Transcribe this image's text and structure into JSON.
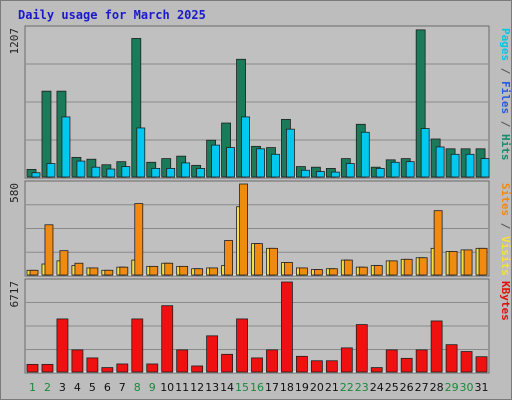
{
  "chart_data": {
    "type": "bar",
    "title": "Daily usage for March 2025",
    "categories": [
      "1",
      "2",
      "3",
      "4",
      "5",
      "6",
      "7",
      "8",
      "9",
      "10",
      "11",
      "12",
      "13",
      "14",
      "15",
      "16",
      "17",
      "18",
      "19",
      "20",
      "21",
      "22",
      "23",
      "24",
      "25",
      "26",
      "27",
      "28",
      "29",
      "30",
      "31"
    ],
    "weekend_days": [
      "1",
      "2",
      "8",
      "9",
      "15",
      "16",
      "22",
      "23",
      "29",
      "30"
    ],
    "panels": [
      {
        "id": "top",
        "max_label": "1207",
        "ylim": [
          0,
          1207
        ],
        "right_label": [
          {
            "text": "Pages",
            "color": "#00c8e0"
          },
          {
            "text": " / ",
            "color": "#555555"
          },
          {
            "text": "Files",
            "color": "#2a5adf"
          },
          {
            "text": " / ",
            "color": "#555555"
          },
          {
            "text": "Hits",
            "color": "#1a8a6a"
          }
        ],
        "series": [
          {
            "name": "Hits",
            "color": "#1a7a5a",
            "values": [
              62,
              700,
              700,
              160,
              145,
              100,
              125,
              1130,
              120,
              150,
              170,
              95,
              300,
              440,
              960,
              250,
              240,
              470,
              85,
              80,
              70,
              150,
              430,
              80,
              140,
              150,
              1200,
              310,
              230,
              230,
              230
            ]
          },
          {
            "name": "Files",
            "color": "#2a5adf",
            "values": [
              0,
              0,
              0,
              0,
              0,
              0,
              0,
              0,
              0,
              0,
              0,
              0,
              0,
              0,
              0,
              0,
              0,
              0,
              0,
              0,
              0,
              0,
              0,
              0,
              0,
              0,
              0,
              0,
              0,
              0,
              0
            ]
          },
          {
            "name": "Pages",
            "color": "#00c8f0",
            "values": [
              35,
              110,
              490,
              130,
              80,
              65,
              85,
              400,
              70,
              70,
              115,
              70,
              260,
              240,
              490,
              230,
              185,
              390,
              55,
              45,
              40,
              110,
              365,
              70,
              120,
              125,
              395,
              245,
              185,
              185,
              150
            ]
          }
        ]
      },
      {
        "id": "middle",
        "max_label": "580",
        "ylim": [
          0,
          580
        ],
        "right_label": [
          {
            "text": "Sites",
            "color": "#f08a10"
          },
          {
            "text": " / ",
            "color": "#555555"
          },
          {
            "text": "Visits",
            "color": "#f5e040"
          }
        ],
        "series": [
          {
            "name": "Visits",
            "color": "#f5e040",
            "values": [
              30,
              70,
              90,
              60,
              45,
              30,
              50,
              95,
              55,
              75,
              55,
              40,
              45,
              60,
              435,
              200,
              170,
              80,
              45,
              35,
              40,
              95,
              50,
              60,
              90,
              100,
              110,
              170,
              150,
              160,
              170
            ]
          },
          {
            "name": "Sites",
            "color": "#f08a10",
            "values": [
              30,
              320,
              155,
              75,
              45,
              30,
              50,
              455,
              55,
              75,
              55,
              40,
              45,
              220,
              580,
              200,
              170,
              80,
              45,
              35,
              40,
              95,
              50,
              60,
              90,
              100,
              110,
              410,
              150,
              160,
              170
            ]
          }
        ]
      },
      {
        "id": "bottom",
        "max_label": "6717",
        "ylim": [
          0,
          6717
        ],
        "right_label": [
          {
            "text": "KBytes",
            "color": "#e01010"
          }
        ],
        "series": [
          {
            "name": "KBytes",
            "color": "#f01010",
            "values": [
              570,
              570,
              3960,
              1650,
              1050,
              330,
              600,
              3960,
              600,
              4950,
              1650,
              450,
              2700,
              1320,
              3960,
              1050,
              1650,
              6717,
              1170,
              840,
              840,
              1800,
              3540,
              330,
              1650,
              1020,
              1650,
              3810,
              2040,
              1530,
              1140
            ]
          }
        ]
      }
    ]
  }
}
